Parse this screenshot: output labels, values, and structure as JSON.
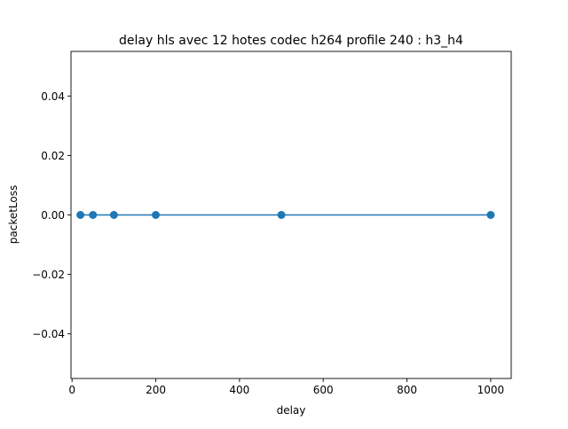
{
  "chart_data": {
    "type": "line",
    "title": "delay hls avec 12 hotes codec h264 profile 240 : h3_h4",
    "xlabel": "delay",
    "ylabel": "packetLoss",
    "xlim": [
      -2.5,
      1049
    ],
    "ylim": [
      -0.055,
      0.055
    ],
    "xticks": [
      0,
      200,
      400,
      600,
      800,
      1000
    ],
    "xtick_labels": [
      "0",
      "200",
      "400",
      "600",
      "800",
      "1000"
    ],
    "yticks": [
      -0.04,
      -0.02,
      0.0,
      0.02,
      0.04
    ],
    "ytick_labels": [
      "−0.04",
      "−0.02",
      "0.00",
      "0.02",
      "0.04"
    ],
    "grid": false,
    "series": [
      {
        "x": [
          20,
          50,
          100,
          200,
          500,
          1000
        ],
        "y": [
          0,
          0,
          0,
          0,
          0,
          0
        ],
        "color": "#1f77b4",
        "marker": "circle"
      }
    ]
  }
}
